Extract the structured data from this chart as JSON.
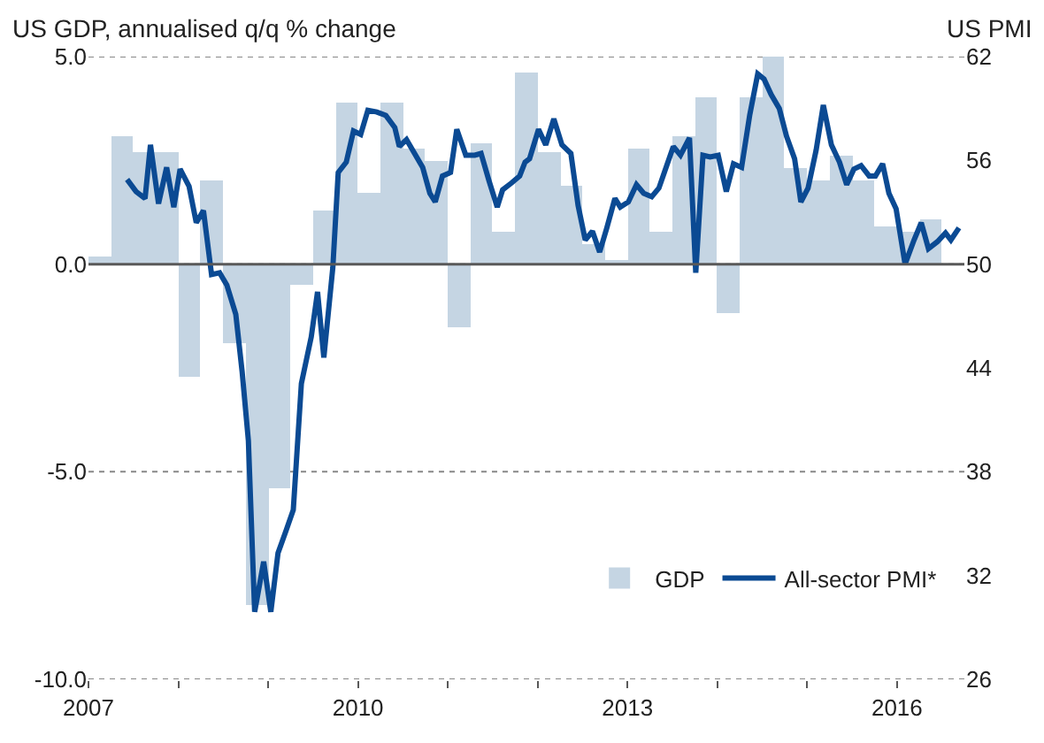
{
  "chart_data": {
    "type": "bar",
    "ylabel": "US GDP, annualised q/q % change",
    "y2label": "US PMI",
    "x": [
      2007.125,
      2007.375,
      2007.625,
      2007.875,
      2008.125,
      2008.375,
      2008.625,
      2008.875,
      2009.125,
      2009.375,
      2009.625,
      2009.875,
      2010.125,
      2010.375,
      2010.625,
      2010.875,
      2011.125,
      2011.375,
      2011.625,
      2011.875,
      2012.125,
      2012.375,
      2012.625,
      2012.875,
      2013.125,
      2013.375,
      2013.625,
      2013.875,
      2014.125,
      2014.375,
      2014.625,
      2014.875,
      2015.125,
      2015.375,
      2015.625,
      2015.875,
      2016.125,
      2016.375
    ],
    "series": [
      {
        "name": "GDP",
        "color": "#c5d5e3",
        "values": [
          0.2,
          3.1,
          2.7,
          2.7,
          -2.7,
          2.0,
          -1.9,
          -8.2,
          -5.4,
          -0.5,
          1.3,
          3.9,
          1.7,
          3.9,
          2.8,
          2.5,
          -1.5,
          2.9,
          0.8,
          4.6,
          2.7,
          1.9,
          0.5,
          0.1,
          2.8,
          0.8,
          3.1,
          4.0,
          -1.2,
          4.0,
          5.0,
          2.3,
          2.0,
          2.6,
          2.0,
          0.9,
          0.8,
          1.1
        ]
      },
      {
        "name": "All-sector PMI*",
        "type": "line",
        "axis": "y2",
        "color": "#0b4a93",
        "x": [
          2007.43,
          2007.53,
          2007.63,
          2007.69,
          2007.78,
          2007.87,
          2007.95,
          2008.02,
          2008.12,
          2008.2,
          2008.28,
          2008.37,
          2008.46,
          2008.54,
          2008.64,
          2008.71,
          2008.78,
          2008.85,
          2008.95,
          2009.03,
          2009.11,
          2009.2,
          2009.28,
          2009.37,
          2009.48,
          2009.55,
          2009.62,
          2009.72,
          2009.78,
          2009.87,
          2009.95,
          2010.03,
          2010.11,
          2010.21,
          2010.31,
          2010.41,
          2010.46,
          2010.54,
          2010.63,
          2010.72,
          2010.8,
          2010.86,
          2010.94,
          2011.03,
          2011.1,
          2011.2,
          2011.3,
          2011.37,
          2011.46,
          2011.55,
          2011.61,
          2011.71,
          2011.8,
          2011.86,
          2011.91,
          2012.01,
          2012.09,
          2012.18,
          2012.27,
          2012.37,
          2012.45,
          2012.53,
          2012.61,
          2012.69,
          2012.77,
          2012.86,
          2012.92,
          2013.01,
          2013.1,
          2013.18,
          2013.27,
          2013.35,
          2013.41,
          2013.51,
          2013.59,
          2013.69,
          2013.76,
          2013.84,
          2013.92,
          2014.01,
          2014.1,
          2014.18,
          2014.27,
          2014.36,
          2014.45,
          2014.52,
          2014.6,
          2014.69,
          2014.77,
          2014.86,
          2014.93,
          2015.01,
          2015.1,
          2015.18,
          2015.27,
          2015.36,
          2015.44,
          2015.52,
          2015.6,
          2015.69,
          2015.76,
          2015.84,
          2015.91,
          2015.99,
          2016.09,
          2016.19,
          2016.27,
          2016.35,
          2016.45,
          2016.54,
          2016.6,
          2016.69
        ],
        "values": [
          54.9,
          54.2,
          53.8,
          56.9,
          53.5,
          55.6,
          53.3,
          55.5,
          54.5,
          52.4,
          53.1,
          49.4,
          49.5,
          48.8,
          47.1,
          43.8,
          39.8,
          29.9,
          32.8,
          29.9,
          33.3,
          34.6,
          35.8,
          43.1,
          45.8,
          48.4,
          44.6,
          49.8,
          55.3,
          55.9,
          57.7,
          57.5,
          58.9,
          58.8,
          58.6,
          57.9,
          56.8,
          57.2,
          56.4,
          55.6,
          54.1,
          53.6,
          55.1,
          55.3,
          57.8,
          56.3,
          56.3,
          56.4,
          54.8,
          53.3,
          54.3,
          54.7,
          55.1,
          55.9,
          56.1,
          57.8,
          56.9,
          58.4,
          56.9,
          56.4,
          53.4,
          51.4,
          51.9,
          50.7,
          52.1,
          53.8,
          53.3,
          53.6,
          54.6,
          54.1,
          53.9,
          54.4,
          55.3,
          56.8,
          56.3,
          57.3,
          49.5,
          56.3,
          56.2,
          56.3,
          54.2,
          55.8,
          55.6,
          58.6,
          61.0,
          60.7,
          59.8,
          59.0,
          57.4,
          56.1,
          53.6,
          54.4,
          56.6,
          59.2,
          56.9,
          55.9,
          54.6,
          55.5,
          55.7,
          55.1,
          55.1,
          55.8,
          54.1,
          53.2,
          50.0,
          51.4,
          52.4,
          50.9,
          51.3,
          51.8,
          51.4,
          52.1
        ]
      }
    ],
    "xlim": [
      2007,
      2016.75
    ],
    "xticks": [
      2007,
      {
        "value": 2008,
        "label": null
      },
      {
        "value": 2009,
        "label": null
      },
      2010,
      {
        "value": 2011,
        "label": null
      },
      {
        "value": 2012,
        "label": null
      },
      2013,
      {
        "value": 2014,
        "label": null
      },
      {
        "value": 2015,
        "label": null
      },
      2016
    ],
    "ylim": [
      -10,
      5
    ],
    "yticks": [
      {
        "value": -10,
        "label": "-10.0"
      },
      {
        "value": -5,
        "label": "-5.0"
      },
      {
        "value": 0,
        "label": "0.0"
      },
      {
        "value": 5,
        "label": "5.0"
      }
    ],
    "y2lim": [
      26,
      62
    ],
    "y2ticks": [
      26,
      32,
      38,
      44,
      50,
      56,
      62
    ],
    "ref_lines": [
      {
        "axis": "y",
        "value": 0,
        "color": "#595959"
      }
    ],
    "grid": "y",
    "line_style": "solid",
    "legend": "bottom right"
  }
}
